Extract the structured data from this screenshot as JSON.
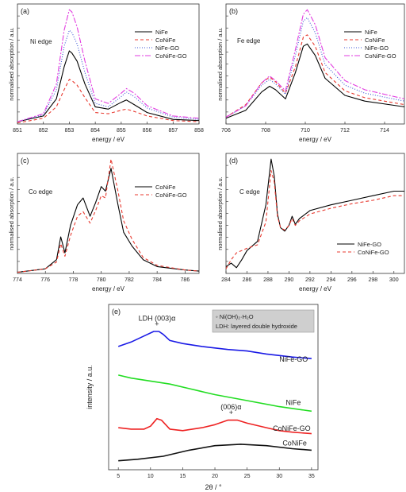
{
  "colors": {
    "black": "#000000",
    "red": "#e8392f",
    "blue": "#3b56d6",
    "magenta": "#e23de0",
    "green": "#22dd22",
    "darkblue": "#1a1ae6",
    "redxrd": "#ee2222",
    "blackxrd": "#111111"
  },
  "chart_data": [
    {
      "id": "a",
      "panel_label": "(a)",
      "annotation": "Ni edge",
      "type": "line",
      "xlabel": "energy / eV",
      "ylabel": "normalised absorption / a.u.",
      "xlim": [
        851,
        858
      ],
      "ylim": [
        0,
        1.05
      ],
      "xticks": [
        851,
        852,
        853,
        854,
        855,
        856,
        857,
        858
      ],
      "legend_position": "top-right",
      "series": [
        {
          "name": "NiFe",
          "color": "#000000",
          "dash": "",
          "x": [
            851,
            852,
            852.5,
            852.8,
            853,
            853.1,
            853.3,
            853.6,
            854,
            854.5,
            855,
            855.2,
            855.5,
            856,
            857,
            858
          ],
          "y": [
            0.02,
            0.07,
            0.22,
            0.5,
            0.64,
            0.62,
            0.55,
            0.35,
            0.15,
            0.13,
            0.19,
            0.21,
            0.17,
            0.1,
            0.04,
            0.03
          ]
        },
        {
          "name": "CoNiFe",
          "color": "#e8392f",
          "dash": "4,3",
          "x": [
            851,
            852,
            852.5,
            852.8,
            853,
            853.1,
            853.3,
            853.6,
            854,
            854.5,
            855,
            855.2,
            855.5,
            856,
            857,
            858
          ],
          "y": [
            0.01,
            0.05,
            0.15,
            0.3,
            0.39,
            0.38,
            0.34,
            0.23,
            0.1,
            0.09,
            0.12,
            0.13,
            0.11,
            0.07,
            0.03,
            0.02
          ]
        },
        {
          "name": "NiFe-GO",
          "color": "#3b56d6",
          "dash": "1,2",
          "x": [
            851,
            852,
            852.5,
            852.8,
            853,
            853.1,
            853.3,
            853.6,
            854,
            854.5,
            855,
            855.2,
            855.5,
            856,
            857,
            858
          ],
          "y": [
            0.02,
            0.08,
            0.3,
            0.68,
            0.82,
            0.8,
            0.7,
            0.45,
            0.18,
            0.15,
            0.24,
            0.28,
            0.24,
            0.14,
            0.06,
            0.04
          ]
        },
        {
          "name": "CoNiFe-GO",
          "color": "#e23de0",
          "dash": "7,2,2,2",
          "x": [
            851,
            852,
            852.5,
            852.8,
            853,
            853.1,
            853.3,
            853.6,
            854,
            854.5,
            855,
            855.2,
            855.5,
            856,
            857,
            858
          ],
          "y": [
            0.02,
            0.09,
            0.35,
            0.82,
            1.0,
            0.98,
            0.85,
            0.55,
            0.22,
            0.18,
            0.27,
            0.31,
            0.27,
            0.16,
            0.07,
            0.05
          ]
        }
      ]
    },
    {
      "id": "b",
      "panel_label": "(b)",
      "annotation": "Fe edge",
      "type": "line",
      "xlabel": "energy / eV",
      "ylabel": "normalised absorption / a.u.",
      "xlim": [
        706,
        715
      ],
      "ylim": [
        0,
        1.05
      ],
      "xticks": [
        706,
        708,
        710,
        712,
        714
      ],
      "legend_position": "top-right",
      "series": [
        {
          "name": "NiFe",
          "color": "#000000",
          "dash": "",
          "x": [
            706,
            707,
            707.8,
            708.2,
            708.5,
            709,
            709.5,
            709.9,
            710.1,
            710.5,
            711,
            712,
            713,
            715
          ],
          "y": [
            0.05,
            0.12,
            0.28,
            0.33,
            0.3,
            0.22,
            0.45,
            0.68,
            0.7,
            0.6,
            0.4,
            0.25,
            0.2,
            0.15
          ]
        },
        {
          "name": "CoNiFe",
          "color": "#e8392f",
          "dash": "4,3",
          "x": [
            706,
            707,
            707.8,
            708.2,
            708.5,
            709,
            709.5,
            709.9,
            710.1,
            710.5,
            711,
            712,
            713,
            715
          ],
          "y": [
            0.06,
            0.17,
            0.36,
            0.41,
            0.37,
            0.27,
            0.5,
            0.76,
            0.78,
            0.68,
            0.45,
            0.29,
            0.23,
            0.17
          ]
        },
        {
          "name": "NiFe-GO",
          "color": "#3b56d6",
          "dash": "1,2",
          "x": [
            706,
            707,
            707.8,
            708.2,
            708.5,
            709,
            709.5,
            709.9,
            710.1,
            710.5,
            711,
            712,
            713,
            715
          ],
          "y": [
            0.06,
            0.16,
            0.34,
            0.39,
            0.35,
            0.26,
            0.6,
            0.9,
            0.93,
            0.8,
            0.52,
            0.34,
            0.27,
            0.2
          ]
        },
        {
          "name": "CoNiFe-GO",
          "color": "#e23de0",
          "dash": "7,2,2,2",
          "x": [
            706,
            707,
            707.8,
            708.2,
            708.5,
            709,
            709.5,
            709.9,
            710.1,
            710.5,
            711,
            712,
            713,
            715
          ],
          "y": [
            0.06,
            0.16,
            0.36,
            0.42,
            0.38,
            0.29,
            0.65,
            0.96,
            1.0,
            0.87,
            0.58,
            0.38,
            0.3,
            0.22
          ]
        }
      ]
    },
    {
      "id": "c",
      "panel_label": "(c)",
      "annotation": "Co edge",
      "type": "line",
      "xlabel": "energy / eV",
      "ylabel": "normalised absorption / a.u.",
      "xlim": [
        774,
        787
      ],
      "ylim": [
        0,
        1.05
      ],
      "xticks": [
        774,
        776,
        778,
        780,
        782,
        784,
        786
      ],
      "legend_position": "top-right",
      "series": [
        {
          "name": "CoNiFe",
          "color": "#000000",
          "dash": "",
          "x": [
            774,
            776,
            776.8,
            777.1,
            777.4,
            777.8,
            778.3,
            778.7,
            779.2,
            779.6,
            780,
            780.3,
            780.7,
            781.2,
            781.6,
            782.2,
            783,
            784,
            786,
            787
          ],
          "y": [
            0.01,
            0.04,
            0.12,
            0.32,
            0.18,
            0.42,
            0.6,
            0.66,
            0.5,
            0.62,
            0.76,
            0.72,
            0.92,
            0.6,
            0.36,
            0.24,
            0.12,
            0.06,
            0.03,
            0.02
          ]
        },
        {
          "name": "CoNiFe-GO",
          "color": "#e8392f",
          "dash": "4,3",
          "x": [
            774,
            776,
            776.8,
            777.1,
            777.4,
            777.8,
            778.3,
            778.7,
            779.2,
            779.6,
            780,
            780.3,
            780.7,
            781.2,
            781.6,
            782.2,
            783,
            784,
            786,
            787
          ],
          "y": [
            0.01,
            0.04,
            0.1,
            0.26,
            0.15,
            0.33,
            0.5,
            0.54,
            0.44,
            0.55,
            0.68,
            0.66,
            1.0,
            0.72,
            0.46,
            0.3,
            0.14,
            0.07,
            0.03,
            0.02
          ]
        }
      ]
    },
    {
      "id": "d",
      "panel_label": "(d)",
      "annotation": "C edge",
      "type": "line",
      "xlabel": "energy / eV",
      "ylabel": "normalised absorption / a.u.",
      "xlim": [
        284,
        301
      ],
      "ylim": [
        0,
        1.05
      ],
      "xticks": [
        284,
        286,
        288,
        290,
        292,
        294,
        296,
        298,
        300
      ],
      "legend_position": "bottom-right",
      "series": [
        {
          "name": "NiFe-GO",
          "color": "#000000",
          "dash": "",
          "x": [
            284,
            284.5,
            285,
            285.5,
            286,
            287,
            287.8,
            288.3,
            288.6,
            288.9,
            289.2,
            289.6,
            290,
            290.3,
            290.6,
            291,
            292,
            294,
            296,
            298,
            300,
            301
          ],
          "y": [
            0.06,
            0.09,
            0.05,
            0.12,
            0.2,
            0.28,
            0.6,
            1.0,
            0.85,
            0.52,
            0.4,
            0.37,
            0.42,
            0.5,
            0.43,
            0.48,
            0.55,
            0.6,
            0.64,
            0.68,
            0.72,
            0.72
          ]
        },
        {
          "name": "CoNiFe-GO",
          "color": "#e8392f",
          "dash": "4,3",
          "x": [
            284,
            284.5,
            285,
            285.5,
            286,
            287,
            287.8,
            288.3,
            288.6,
            288.9,
            289.2,
            289.6,
            290,
            290.3,
            290.6,
            291,
            292,
            294,
            296,
            298,
            300,
            301
          ],
          "y": [
            0.04,
            0.12,
            0.18,
            0.2,
            0.22,
            0.25,
            0.45,
            0.9,
            0.8,
            0.5,
            0.4,
            0.38,
            0.42,
            0.48,
            0.42,
            0.46,
            0.52,
            0.57,
            0.61,
            0.64,
            0.68,
            0.68
          ]
        }
      ]
    },
    {
      "id": "e",
      "panel_label": "(e)",
      "type": "line",
      "xlabel": "2θ / °",
      "ylabel": "intensity / a.u.",
      "xlim": [
        3.5,
        36
      ],
      "ylim": [
        0,
        1.1
      ],
      "xticks": [
        5,
        10,
        15,
        20,
        25,
        30,
        35
      ],
      "legend_box": [
        "◦ Ni(OH)₂·H₂O",
        "LDH: layered double hydroxide"
      ],
      "peak_labels": [
        {
          "text": "LDH (003)α",
          "x": 11.0,
          "y": 0.96
        },
        {
          "text": "(006)α",
          "x": 22.5,
          "y": 0.37
        }
      ],
      "series": [
        {
          "name": "NiFe-GO",
          "color": "#1a1ae6",
          "label_x": 30,
          "label_y": 0.72,
          "x": [
            5,
            7,
            9,
            10.5,
            11.3,
            12,
            13,
            15,
            18,
            20,
            22,
            25,
            28,
            30,
            32,
            35
          ],
          "y": [
            0.82,
            0.85,
            0.89,
            0.92,
            0.92,
            0.9,
            0.86,
            0.84,
            0.82,
            0.81,
            0.8,
            0.79,
            0.77,
            0.76,
            0.75,
            0.74
          ]
        },
        {
          "name": "NiFe",
          "color": "#22dd22",
          "label_x": 31,
          "label_y": 0.43,
          "x": [
            5,
            7,
            10,
            13,
            16,
            20,
            25,
            30,
            35
          ],
          "y": [
            0.63,
            0.61,
            0.59,
            0.57,
            0.54,
            0.5,
            0.46,
            0.42,
            0.39
          ]
        },
        {
          "name": "CoNiFe-GO",
          "color": "#ee2222",
          "label_x": 29,
          "label_y": 0.26,
          "x": [
            5,
            7,
            9,
            10,
            11,
            11.7,
            13,
            15,
            18,
            20,
            22,
            23.5,
            25,
            28,
            30,
            32,
            35
          ],
          "y": [
            0.28,
            0.27,
            0.27,
            0.29,
            0.34,
            0.33,
            0.27,
            0.26,
            0.28,
            0.3,
            0.33,
            0.33,
            0.31,
            0.28,
            0.26,
            0.25,
            0.24
          ]
        },
        {
          "name": "CoNiFe",
          "color": "#111111",
          "label_x": 30.5,
          "label_y": 0.16,
          "x": [
            5,
            8,
            12,
            16,
            20,
            24,
            28,
            32,
            35
          ],
          "y": [
            0.06,
            0.07,
            0.09,
            0.13,
            0.16,
            0.17,
            0.16,
            0.14,
            0.13
          ]
        }
      ]
    }
  ]
}
